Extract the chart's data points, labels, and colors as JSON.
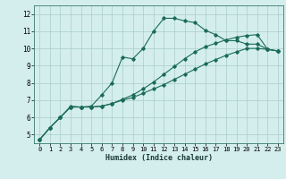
{
  "xlabel": "Humidex (Indice chaleur)",
  "bg_color": "#d4eeed",
  "line_color": "#1a6b5a",
  "grid_color": "#a8ccca",
  "xlim": [
    -0.5,
    23.5
  ],
  "ylim": [
    4.5,
    12.5
  ],
  "xticks": [
    0,
    1,
    2,
    3,
    4,
    5,
    6,
    7,
    8,
    9,
    10,
    11,
    12,
    13,
    14,
    15,
    16,
    17,
    18,
    19,
    20,
    21,
    22,
    23
  ],
  "yticks": [
    5,
    6,
    7,
    8,
    9,
    10,
    11,
    12
  ],
  "series": [
    [
      4.7,
      5.4,
      6.0,
      6.6,
      6.6,
      6.6,
      6.65,
      6.8,
      7.0,
      7.15,
      7.4,
      7.65,
      7.9,
      8.2,
      8.5,
      8.8,
      9.1,
      9.35,
      9.6,
      9.8,
      10.0,
      10.0,
      9.95,
      9.85
    ],
    [
      4.7,
      5.4,
      6.0,
      6.6,
      6.6,
      6.6,
      6.65,
      6.8,
      7.05,
      7.3,
      7.65,
      8.05,
      8.5,
      8.95,
      9.4,
      9.8,
      10.1,
      10.3,
      10.5,
      10.65,
      10.75,
      10.8,
      9.95,
      9.85
    ],
    [
      4.7,
      5.4,
      6.0,
      6.65,
      6.6,
      6.65,
      7.3,
      8.0,
      9.5,
      9.4,
      10.0,
      11.0,
      11.75,
      11.75,
      11.6,
      11.5,
      11.05,
      10.8,
      10.45,
      10.45,
      10.25,
      10.25,
      9.95,
      9.85
    ]
  ]
}
